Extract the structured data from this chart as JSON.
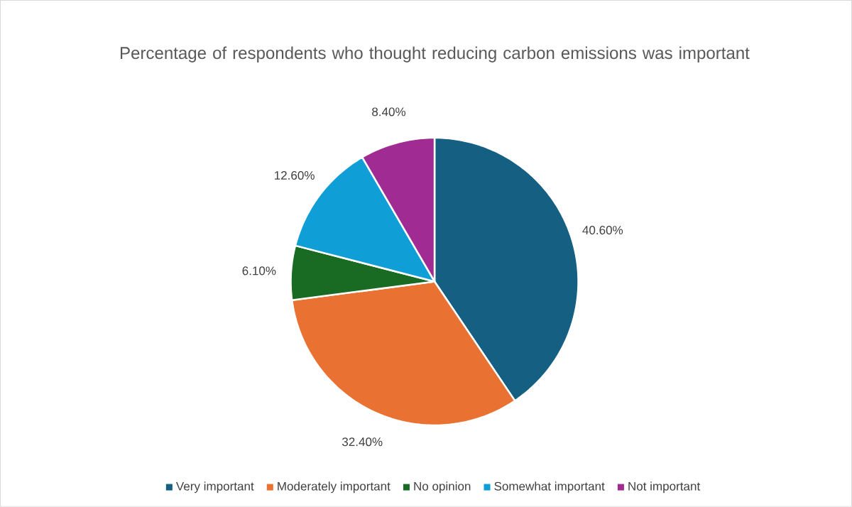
{
  "chart_data": {
    "type": "pie",
    "title": "Percentage of respondents who thought reducing carbon emissions was important",
    "categories": [
      "Very important",
      "Moderately important",
      "No opinion",
      "Somewhat important",
      "Not important"
    ],
    "values": [
      40.6,
      32.4,
      6.1,
      12.6,
      8.4
    ],
    "value_labels": [
      "40.60%",
      "32.40%",
      "6.10%",
      "12.60%",
      "8.40%"
    ],
    "colors": [
      "#156082",
      "#e97132",
      "#196b24",
      "#0f9ed5",
      "#a02b93"
    ],
    "legend": "bottom"
  }
}
